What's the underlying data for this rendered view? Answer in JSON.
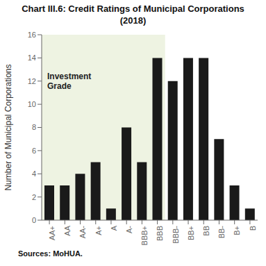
{
  "chart_data": {
    "type": "bar",
    "title": "Chart III.6: Credit Ratings of Municipal Corporations\n(2018)",
    "categories": [
      "AA+",
      "AA",
      "AA-",
      "A+",
      "A",
      "A-",
      "BBB+",
      "BBB",
      "BBB-",
      "BB+",
      "BB",
      "BB-",
      "B+",
      "B"
    ],
    "values": [
      3,
      3,
      4,
      5,
      1,
      8,
      5,
      14,
      12,
      14,
      14,
      7,
      3,
      1
    ],
    "color": "#1a1a1a",
    "ylabel": "Number of Municipal Corporations",
    "ylim": [
      0,
      16
    ],
    "yticks": [
      0,
      2,
      4,
      6,
      8,
      10,
      12,
      14,
      16
    ],
    "grid": false,
    "annotations": [
      {
        "text": "Investment\nGrade",
        "x_from": "AA+",
        "x_to": "BBB",
        "color": "#eef3e2"
      },
      {
        "text": "Sources: MoHUA."
      }
    ]
  }
}
